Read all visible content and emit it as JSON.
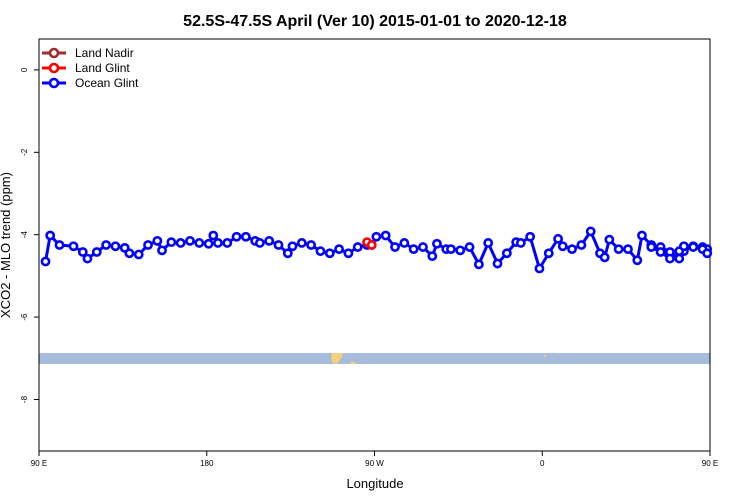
{
  "chart_data": {
    "type": "line",
    "title": "52.5S-47.5S April (Ver 10)   2015-01-01 to 2020-12-18",
    "xlabel": "Longitude",
    "ylabel": "XCO2 - MLO trend (ppm)",
    "xlim": [
      90,
      450
    ],
    "ylim": [
      -9.25,
      0.75
    ],
    "x_ticks": [
      {
        "value": 90,
        "label": "90 E"
      },
      {
        "value": 180,
        "label": "180"
      },
      {
        "value": 270,
        "label": "90 W"
      },
      {
        "value": 360,
        "label": "0"
      },
      {
        "value": 450,
        "label": "90 E"
      },
      {
        "value": 540,
        "label": "180"
      }
    ],
    "y_ticks": [
      {
        "value": 0,
        "label": "0"
      },
      {
        "value": -2,
        "label": "-2"
      },
      {
        "value": -4,
        "label": "-4"
      },
      {
        "value": -6,
        "label": "-6"
      },
      {
        "value": -8,
        "label": "-8"
      }
    ],
    "grid": false,
    "legend_position": "top-left",
    "series": [
      {
        "name": "Land Nadir",
        "color": "#a52a2a",
        "x": [],
        "y": []
      },
      {
        "name": "Land Glint",
        "color": "#ff0000",
        "x": [
          266,
          268.5
        ],
        "y": [
          -4.18,
          -4.25
        ]
      },
      {
        "name": "Ocean Glint",
        "color": "#0000ff",
        "segments": [
          {
            "x": [
              93.5,
              96,
              101,
              108.5,
              113.5,
              116,
              121,
              126,
              131,
              136,
              138.5,
              143.5,
              148.5,
              153.5,
              156,
              161,
              166,
              171,
              176,
              181,
              183.5,
              186,
              191,
              196,
              201,
              206,
              208.5,
              213.5,
              218.5,
              223.5,
              226,
              231,
              236,
              241,
              246,
              251,
              256,
              261,
              266,
              268.5,
              271,
              276,
              281,
              286,
              291,
              296,
              301,
              303.5,
              308.5,
              311,
              316,
              321,
              326,
              331,
              336,
              341,
              346,
              348.5,
              353.5,
              358.5,
              363.5,
              368.5,
              371,
              376,
              381,
              386,
              391,
              393.5,
              396,
              401,
              406,
              411,
              413.5,
              418.5,
              423.5,
              428.5,
              433.5,
              436,
              441,
              446,
              448.5
            ],
            "y": [
              -4.65,
              -4.02,
              -4.25,
              -4.28,
              -4.42,
              -4.58,
              -4.42,
              -4.25,
              -4.28,
              -4.32,
              -4.45,
              -4.48,
              -4.25,
              -4.15,
              -4.38,
              -4.18,
              -4.2,
              -4.15,
              -4.2,
              -4.22,
              -4.02,
              -4.2,
              -4.2,
              -4.05,
              -4.05,
              -4.15,
              -4.2,
              -4.15,
              -4.25,
              -4.45,
              -4.28,
              -4.2,
              -4.25,
              -4.4,
              -4.45,
              -4.35,
              -4.45,
              -4.3,
              -4.25,
              -4.25,
              -4.05,
              -4.02,
              -4.3,
              -4.2,
              -4.35,
              -4.3,
              -4.52,
              -4.22,
              -4.35,
              -4.35,
              -4.38,
              -4.3,
              -4.72,
              -4.2,
              -4.7,
              -4.45,
              -4.18,
              -4.2,
              -4.05,
              -4.82,
              -4.45,
              -4.1,
              -4.28,
              -4.35,
              -4.25,
              -3.92,
              -4.45,
              -4.55,
              -4.12,
              -4.35,
              -4.35,
              -4.62,
              -4.02,
              -4.25,
              -4.3,
              -4.42,
              -4.58,
              -4.4,
              -4.28,
              -4.3,
              -4.35
            ]
          },
          {
            "x": [
              418.5,
              423.5,
              428.5,
              433.5,
              436,
              441,
              446,
              448.5
            ],
            "y": [
              -4.3,
              -4.42,
              -4.58,
              -4.4,
              -4.28,
              -4.3,
              -4.35,
              -4.45
            ]
          }
        ]
      }
    ]
  },
  "map_strip": {
    "ocean_color": "#a5bcdb",
    "land_color": "#f3d27c"
  }
}
